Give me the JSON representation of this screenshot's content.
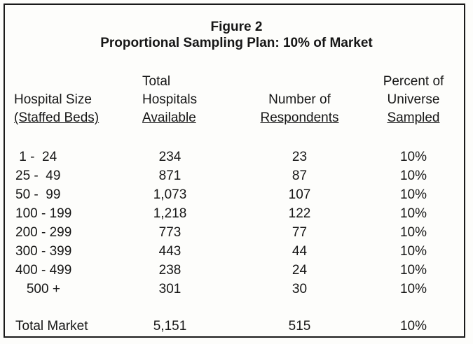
{
  "figure": {
    "title": "Figure 2",
    "subtitle": "Proportional Sampling Plan: 10% of Market"
  },
  "headers": {
    "size": [
      "Hospital Size",
      "(Staffed Beds)"
    ],
    "total": [
      "Total",
      "Hospitals",
      "Available"
    ],
    "respondents": [
      "Number of",
      "Respondents"
    ],
    "percent": [
      "Percent of",
      "Universe",
      "Sampled"
    ]
  },
  "rows": [
    {
      "size": " 1 -  24",
      "total": "234",
      "respondents": "23",
      "percent": "10%"
    },
    {
      "size": "25 -  49",
      "total": "871",
      "respondents": "87",
      "percent": "10%"
    },
    {
      "size": "50 -  99",
      "total": "1,073",
      "respondents": "107",
      "percent": "10%"
    },
    {
      "size": "100 - 199",
      "total": "1,218",
      "respondents": "122",
      "percent": "10%"
    },
    {
      "size": "200 - 299",
      "total": "773",
      "respondents": "77",
      "percent": "10%"
    },
    {
      "size": "300 - 399",
      "total": "443",
      "respondents": "44",
      "percent": "10%"
    },
    {
      "size": "400 - 499",
      "total": "238",
      "respondents": "24",
      "percent": "10%"
    },
    {
      "size": "   500 +",
      "total": "301",
      "respondents": "30",
      "percent": "10%"
    }
  ],
  "total_row": {
    "size": "Total Market",
    "total": "5,151",
    "respondents": "515",
    "percent": "10%"
  }
}
